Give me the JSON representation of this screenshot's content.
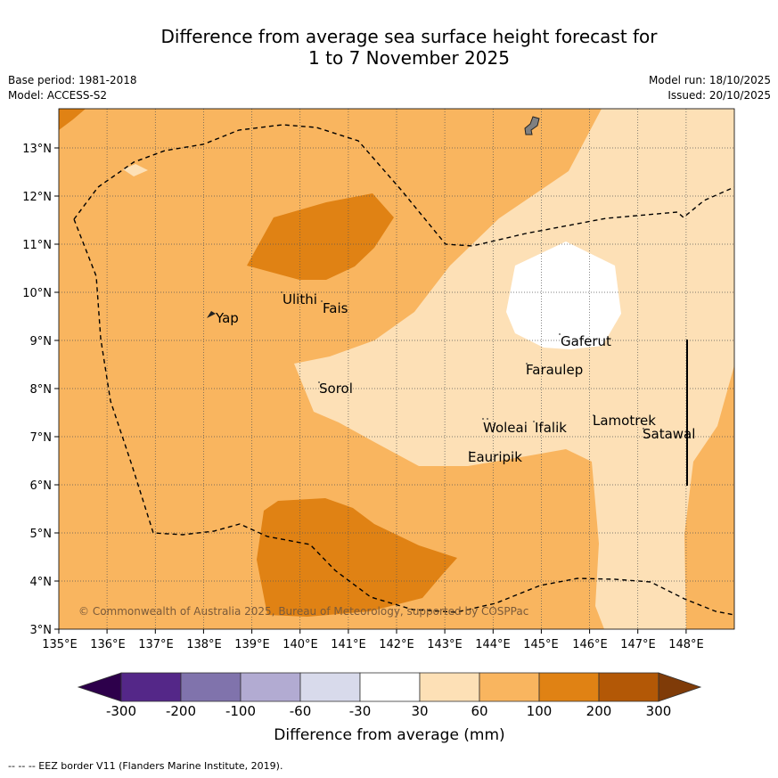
{
  "title": {
    "line1": "Difference from average sea surface height forecast for",
    "line2": "1 to 7 November 2025"
  },
  "meta": {
    "base_period": "Base period: 1981-2018",
    "model": "Model: ACCESS-S2",
    "model_run": "Model run: 18/10/2025",
    "issued": "Issued: 20/10/2025"
  },
  "map": {
    "lon_range": [
      135,
      149
    ],
    "lat_range": [
      3,
      13.8
    ],
    "lon_ticks": [
      "135°E",
      "136°E",
      "137°E",
      "138°E",
      "139°E",
      "140°E",
      "141°E",
      "142°E",
      "143°E",
      "144°E",
      "145°E",
      "146°E",
      "147°E",
      "148°E"
    ],
    "lat_ticks": [
      "3°N",
      "4°N",
      "5°N",
      "6°N",
      "7°N",
      "8°N",
      "9°N",
      "10°N",
      "11°N",
      "12°N",
      "13°N"
    ],
    "places": [
      {
        "name": "Yap",
        "lon": 138.2,
        "lat": 9.4
      },
      {
        "name": "Ulithi",
        "lon": 139.7,
        "lat": 9.8
      },
      {
        "name": "Fais",
        "lon": 140.5,
        "lat": 9.6
      },
      {
        "name": "Sorol",
        "lon": 140.4,
        "lat": 7.9
      },
      {
        "name": "Gaferut",
        "lon": 145.4,
        "lat": 8.9
      },
      {
        "name": "Faraulep",
        "lon": 144.8,
        "lat": 8.3
      },
      {
        "name": "Woleai",
        "lon": 143.8,
        "lat": 7.1
      },
      {
        "name": "Ifalik",
        "lon": 144.8,
        "lat": 7.1
      },
      {
        "name": "Lamotrek",
        "lon": 146.1,
        "lat": 7.3
      },
      {
        "name": "Satawal",
        "lon": 147.1,
        "lat": 7.0
      },
      {
        "name": "Eauripik",
        "lon": 143.4,
        "lat": 6.5
      }
    ],
    "copyright": "© Commonwealth of Australia 2025, Bureau of Meteorology, supported by COSPPac"
  },
  "colors": {
    "c_30_60": "#fde0b6",
    "c_60_100": "#f9b55f",
    "c_100_200": "#e08214",
    "c_200_300": "#b35806",
    "c_below_neg300": "#2d004b",
    "c_neg300_neg200": "#542788",
    "c_neg200_neg100": "#8073ac",
    "c_neg100_neg60": "#b2abd2",
    "c_neg60_neg30": "#d8daeb",
    "c_neutral": "#ffffff",
    "c_above_300": "#7f3b08"
  },
  "colorbar": {
    "ticks": [
      "-300",
      "-200",
      "-100",
      "-60",
      "-30",
      "30",
      "60",
      "100",
      "200",
      "300"
    ],
    "label": "Difference from average (mm)"
  },
  "footnote": "--  --  -- EEZ border V11 (Flanders Marine Institute, 2019)."
}
